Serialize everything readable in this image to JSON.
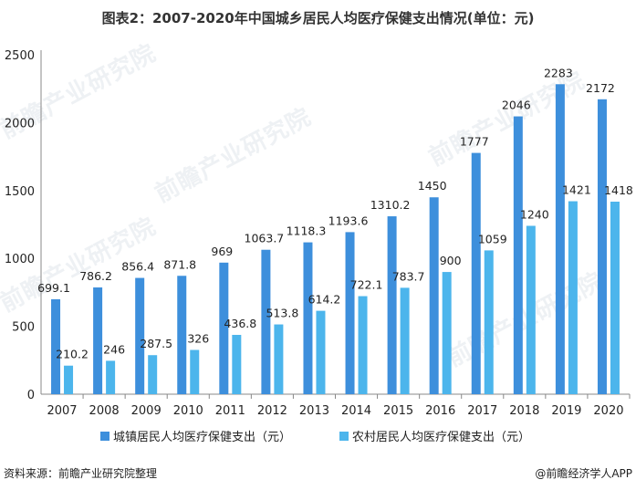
{
  "title": "图表2：2007-2020年中国城乡居民人均医疗保健支出情况(单位：元)",
  "watermark": "前瞻产业研究院",
  "source": "资料来源：前瞻产业研究院整理",
  "brand": "@前瞻经济学人APP",
  "colors": {
    "urban": "#3d8fdc",
    "rural": "#4cb5ec",
    "axis": "#888888",
    "grid": "#ffffff"
  },
  "chart_data": {
    "type": "bar",
    "categories": [
      "2007",
      "2008",
      "2009",
      "2010",
      "2011",
      "2012",
      "2013",
      "2014",
      "2015",
      "2016",
      "2017",
      "2018",
      "2019",
      "2020"
    ],
    "series": [
      {
        "name": "城镇居民人均医疗保健支出（元）",
        "values": [
          699.1,
          786.2,
          856.4,
          871.8,
          969,
          1063.7,
          1118.3,
          1193.6,
          1310.2,
          1450,
          1777,
          2046,
          2283,
          2172
        ]
      },
      {
        "name": "农村居民人均医疗保健支出（元）",
        "values": [
          210.2,
          246,
          287.5,
          326,
          436.8,
          513.8,
          614.2,
          722.1,
          783.7,
          900,
          1059,
          1240,
          1421,
          1418
        ]
      }
    ],
    "ylim": [
      0,
      2500
    ],
    "yticks": [
      0,
      500,
      1000,
      1500,
      2000,
      2500
    ],
    "legend": "bottom"
  }
}
